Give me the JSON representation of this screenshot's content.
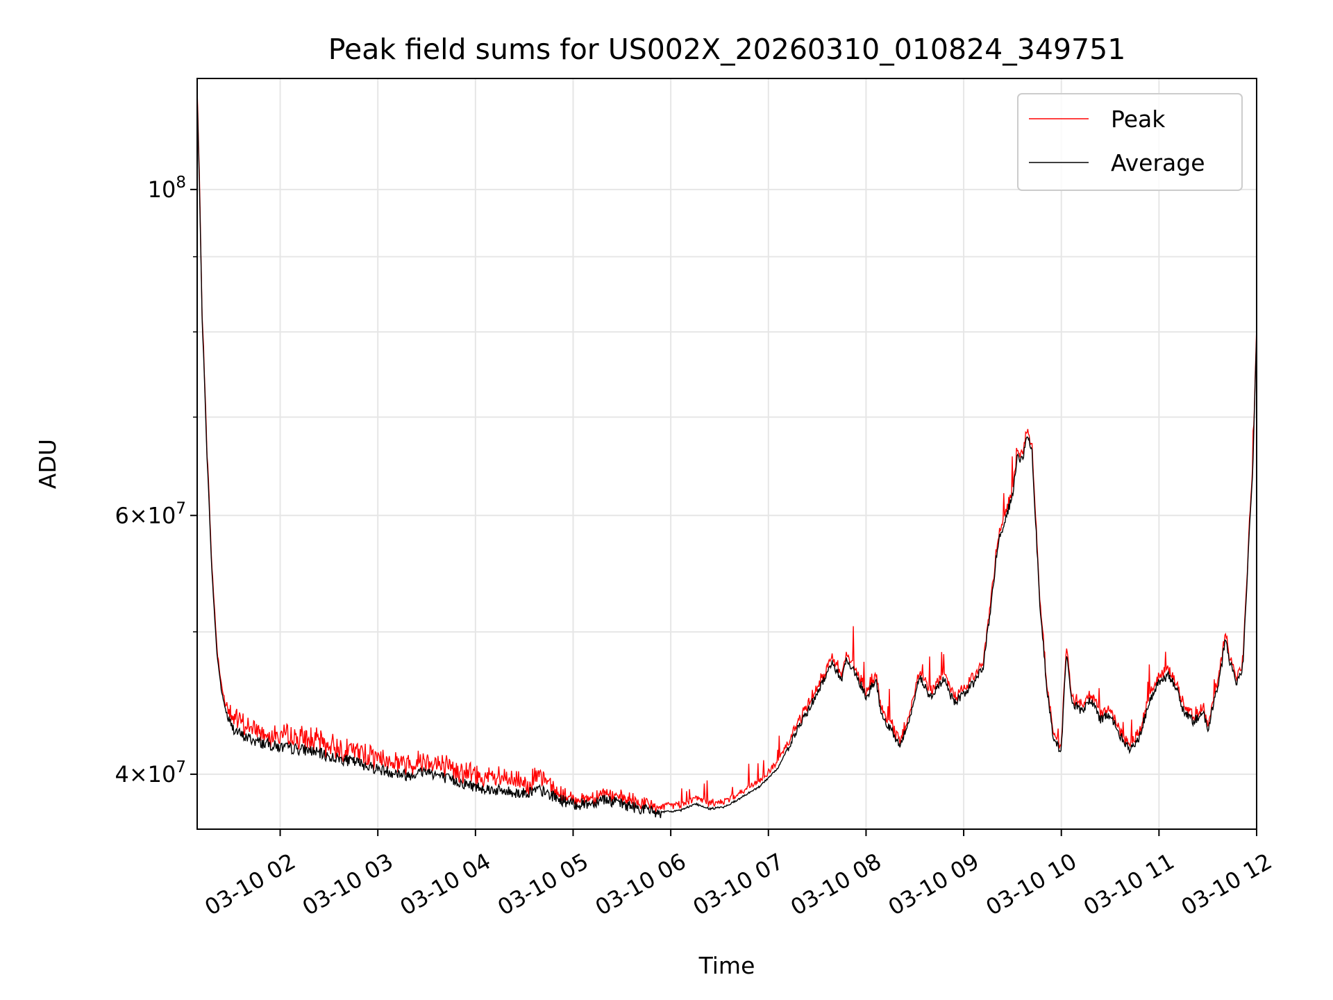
{
  "chart_data": {
    "type": "line",
    "title": "Peak field sums for US002X_20260310_010824_349751",
    "xlabel": "Time",
    "ylabel": "ADU",
    "yscale": "log",
    "xlim_hours": [
      1.15,
      12.0
    ],
    "ylim": [
      36700000,
      119000000
    ],
    "x_ticks": [
      {
        "hour": 2,
        "label": "03-10 02"
      },
      {
        "hour": 3,
        "label": "03-10 03"
      },
      {
        "hour": 4,
        "label": "03-10 04"
      },
      {
        "hour": 5,
        "label": "03-10 05"
      },
      {
        "hour": 6,
        "label": "03-10 06"
      },
      {
        "hour": 7,
        "label": "03-10 07"
      },
      {
        "hour": 8,
        "label": "03-10 08"
      },
      {
        "hour": 9,
        "label": "03-10 09"
      },
      {
        "hour": 10,
        "label": "03-10 10"
      },
      {
        "hour": 11,
        "label": "03-10 11"
      },
      {
        "hour": 12,
        "label": "03-10 12"
      }
    ],
    "y_ticks": [
      {
        "value": 40000000,
        "mant": "4",
        "exp": "7"
      },
      {
        "value": 60000000,
        "mant": "6",
        "exp": "7"
      },
      {
        "value": 100000000,
        "mant": "",
        "exp": "8"
      }
    ],
    "y_minor_ticks": [
      50000000,
      70000000,
      80000000,
      90000000
    ],
    "grid": true,
    "legend_position": "top-right",
    "series": [
      {
        "name": "Peak",
        "color": "#ff0000"
      },
      {
        "name": "Average",
        "color": "#000000"
      }
    ],
    "average_points": [
      [
        1.15,
        116000000
      ],
      [
        1.2,
        82000000
      ],
      [
        1.25,
        66000000
      ],
      [
        1.3,
        55000000
      ],
      [
        1.35,
        48500000
      ],
      [
        1.4,
        45500000
      ],
      [
        1.45,
        44000000
      ],
      [
        1.5,
        43200000
      ],
      [
        1.6,
        42600000
      ],
      [
        1.75,
        42200000
      ],
      [
        2.0,
        41800000
      ],
      [
        2.3,
        41600000
      ],
      [
        2.5,
        41200000
      ],
      [
        2.8,
        40800000
      ],
      [
        3.0,
        40400000
      ],
      [
        3.3,
        40000000
      ],
      [
        3.5,
        40300000
      ],
      [
        3.7,
        39800000
      ],
      [
        4.0,
        39300000
      ],
      [
        4.3,
        39000000
      ],
      [
        4.5,
        38900000
      ],
      [
        4.65,
        39100000
      ],
      [
        4.8,
        38700000
      ],
      [
        5.0,
        38200000
      ],
      [
        5.2,
        38300000
      ],
      [
        5.3,
        38600000
      ],
      [
        5.45,
        38300000
      ],
      [
        5.6,
        38100000
      ],
      [
        5.75,
        37900000
      ],
      [
        5.9,
        37700000
      ],
      [
        6.1,
        37800000
      ],
      [
        6.25,
        38200000
      ],
      [
        6.4,
        37900000
      ],
      [
        6.55,
        38000000
      ],
      [
        6.7,
        38500000
      ],
      [
        6.9,
        39200000
      ],
      [
        7.1,
        40400000
      ],
      [
        7.25,
        42400000
      ],
      [
        7.4,
        44200000
      ],
      [
        7.55,
        46200000
      ],
      [
        7.65,
        47700000
      ],
      [
        7.75,
        46500000
      ],
      [
        7.8,
        48000000
      ],
      [
        7.9,
        46800000
      ],
      [
        8.0,
        45200000
      ],
      [
        8.1,
        46500000
      ],
      [
        8.15,
        44000000
      ],
      [
        8.25,
        43000000
      ],
      [
        8.35,
        41900000
      ],
      [
        8.45,
        43800000
      ],
      [
        8.55,
        46800000
      ],
      [
        8.65,
        45200000
      ],
      [
        8.8,
        46500000
      ],
      [
        8.9,
        44800000
      ],
      [
        9.0,
        45400000
      ],
      [
        9.1,
        46200000
      ],
      [
        9.2,
        47500000
      ],
      [
        9.28,
        52000000
      ],
      [
        9.35,
        57500000
      ],
      [
        9.42,
        59500000
      ],
      [
        9.5,
        62000000
      ],
      [
        9.55,
        66000000
      ],
      [
        9.6,
        65500000
      ],
      [
        9.65,
        68000000
      ],
      [
        9.7,
        66500000
      ],
      [
        9.73,
        60500000
      ],
      [
        9.78,
        52000000
      ],
      [
        9.85,
        46000000
      ],
      [
        9.92,
        42200000
      ],
      [
        10.0,
        41600000
      ],
      [
        10.05,
        48500000
      ],
      [
        10.1,
        45000000
      ],
      [
        10.2,
        44200000
      ],
      [
        10.3,
        45000000
      ],
      [
        10.4,
        43600000
      ],
      [
        10.5,
        44000000
      ],
      [
        10.6,
        42600000
      ],
      [
        10.7,
        41600000
      ],
      [
        10.8,
        42500000
      ],
      [
        10.9,
        44800000
      ],
      [
        11.0,
        46300000
      ],
      [
        11.1,
        46800000
      ],
      [
        11.2,
        45500000
      ],
      [
        11.25,
        44200000
      ],
      [
        11.35,
        43500000
      ],
      [
        11.45,
        44100000
      ],
      [
        11.5,
        43000000
      ],
      [
        11.55,
        44400000
      ],
      [
        11.62,
        46500000
      ],
      [
        11.68,
        49500000
      ],
      [
        11.72,
        47800000
      ],
      [
        11.8,
        46200000
      ],
      [
        11.86,
        47500000
      ],
      [
        11.92,
        57500000
      ],
      [
        11.96,
        64500000
      ],
      [
        12.0,
        80000000
      ]
    ]
  }
}
